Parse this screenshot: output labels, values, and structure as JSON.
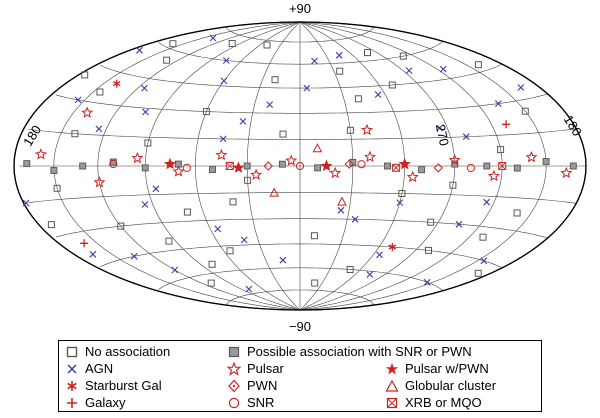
{
  "chart_data": {
    "type": "scatter",
    "projection": "Hammer-Aitoff all-sky map in Galactic coordinates (l decreasing to the right)",
    "labels": {
      "top": "+90",
      "bottom": "−90",
      "left": "180",
      "right": "180",
      "center_right": "270"
    },
    "grid": true,
    "legend_position": "bottom",
    "series": [
      {
        "name": "No association",
        "marker": "square",
        "color": "#5a5a4a",
        "note": "many points over the whole sky",
        "points": [
          [
            175,
            40
          ],
          [
            160,
            62
          ],
          [
            140,
            15
          ],
          [
            120,
            -30
          ],
          [
            100,
            70
          ],
          [
            80,
            -55
          ],
          [
            60,
            30
          ],
          [
            40,
            -20
          ],
          [
            20,
            50
          ],
          [
            -10,
            -40
          ],
          [
            -30,
            20
          ],
          [
            -50,
            -60
          ],
          [
            -70,
            45
          ],
          [
            -90,
            -10
          ],
          [
            -110,
            60
          ],
          [
            -130,
            -35
          ],
          [
            -150,
            25
          ],
          [
            -170,
            -50
          ],
          [
            150,
            -10
          ],
          [
            130,
            55
          ],
          [
            110,
            -65
          ],
          [
            90,
            12
          ],
          [
            70,
            -25
          ],
          [
            50,
            72
          ],
          [
            30,
            -8
          ],
          [
            10,
            18
          ],
          [
            -20,
            -70
          ],
          [
            -40,
            38
          ],
          [
            -60,
            -15
          ],
          [
            -80,
            65
          ],
          [
            -100,
            -45
          ],
          [
            -120,
            8
          ],
          [
            -140,
            -22
          ],
          [
            -160,
            48
          ],
          [
            170,
            -25
          ],
          [
            145,
            35
          ],
          [
            95,
            -40
          ],
          [
            55,
            -48
          ],
          [
            -35,
            55
          ],
          [
            -85,
            -30
          ]
        ]
      },
      {
        "name": "Possible association with SNR or PWN",
        "marker": "square-filled",
        "color": "#6a6a6a",
        "note": "along the Galactic plane",
        "points": [
          [
            170,
            1
          ],
          [
            150,
            -2
          ],
          [
            130,
            0
          ],
          [
            110,
            2
          ],
          [
            90,
            -1
          ],
          [
            70,
            1
          ],
          [
            50,
            -2
          ],
          [
            30,
            0
          ],
          [
            10,
            1
          ],
          [
            -10,
            -1
          ],
          [
            -30,
            2
          ],
          [
            -50,
            0
          ],
          [
            -70,
            -2
          ],
          [
            -90,
            1
          ],
          [
            -110,
            0
          ],
          [
            -130,
            -1
          ],
          [
            -150,
            2
          ],
          [
            -170,
            0
          ]
        ]
      },
      {
        "name": "AGN",
        "marker": "x",
        "color": "#3a3ab8",
        "note": "many points at high latitude",
        "points": [
          [
            172,
            55
          ],
          [
            155,
            30
          ],
          [
            135,
            -45
          ],
          [
            115,
            40
          ],
          [
            95,
            -20
          ],
          [
            75,
            60
          ],
          [
            55,
            -35
          ],
          [
            35,
            25
          ],
          [
            15,
            -55
          ],
          [
            -5,
            45
          ],
          [
            -25,
            -25
          ],
          [
            -45,
            65
          ],
          [
            -65,
            -50
          ],
          [
            -85,
            20
          ],
          [
            -105,
            -30
          ],
          [
            -125,
            50
          ],
          [
            -145,
            -60
          ],
          [
            -165,
            35
          ],
          [
            165,
            -40
          ],
          [
            140,
            70
          ],
          [
            120,
            -55
          ],
          [
            100,
            28
          ],
          [
            80,
            -72
          ],
          [
            60,
            48
          ],
          [
            40,
            -42
          ],
          [
            20,
            35
          ],
          [
            -15,
            62
          ],
          [
            -35,
            -30
          ],
          [
            -55,
            40
          ],
          [
            -75,
            -62
          ],
          [
            -95,
            52
          ],
          [
            -115,
            -18
          ],
          [
            -135,
            30
          ],
          [
            -155,
            -45
          ],
          [
            178,
            -15
          ],
          [
            125,
            18
          ],
          [
            85,
            -12
          ],
          [
            45,
            15
          ],
          [
            -60,
            -20
          ],
          [
            -100,
            15
          ]
        ]
      },
      {
        "name": "Pulsar",
        "marker": "star-open",
        "color": "#cc2222",
        "note": "concentrated near the plane",
        "points": [
          [
            160,
            5
          ],
          [
            120,
            -8
          ],
          [
            95,
            4
          ],
          [
            70,
            -3
          ],
          [
            45,
            6
          ],
          [
            25,
            -5
          ],
          [
            5,
            3
          ],
          [
            -20,
            -4
          ],
          [
            -40,
            5
          ],
          [
            -65,
            -6
          ],
          [
            -90,
            3
          ],
          [
            -115,
            -5
          ],
          [
            -140,
            4
          ],
          [
            -165,
            -3
          ],
          [
            140,
            25
          ],
          [
            -40,
            20
          ]
        ]
      },
      {
        "name": "Pulsar w/PWN",
        "marker": "star-filled",
        "color": "#cc2222",
        "note": "on the plane",
        "points": [
          [
            75,
            1
          ],
          [
            35,
            -1
          ],
          [
            -15,
            0
          ],
          [
            -60,
            1
          ]
        ]
      },
      {
        "name": "Starburst Gal",
        "marker": "asterisk",
        "color": "#cc2222",
        "note": "two points at high latitude",
        "points": [
          [
            140,
            40
          ],
          [
            -70,
            -45
          ]
        ]
      },
      {
        "name": "PWN",
        "marker": "diamond-open",
        "color": "#cc2222",
        "note": "on the plane",
        "points": [
          [
            18,
            0
          ],
          [
            -28,
            1
          ],
          [
            -80,
            -1
          ]
        ]
      },
      {
        "name": "Globular cluster",
        "marker": "triangle-open",
        "color": "#cc2222",
        "note": "near the centre",
        "points": [
          [
            15,
            -15
          ],
          [
            -10,
            10
          ],
          [
            -25,
            -20
          ]
        ]
      },
      {
        "name": "Galaxy",
        "marker": "plus",
        "color": "#cc2222",
        "note": "two points",
        "points": [
          [
            160,
            -35
          ],
          [
            -130,
            20
          ]
        ]
      },
      {
        "name": "SNR",
        "marker": "circle-open",
        "color": "#cc2222",
        "note": "on the plane",
        "points": [
          [
            110,
            1
          ],
          [
            65,
            -1
          ],
          [
            0,
            0
          ],
          [
            -35,
            1
          ],
          [
            -100,
            -1
          ]
        ]
      },
      {
        "name": "XRB or MQO",
        "marker": "square-x",
        "color": "#cc2222",
        "note": "on the plane",
        "points": [
          [
            40,
            0
          ],
          [
            -55,
            -1
          ],
          [
            -120,
            0
          ]
        ]
      }
    ]
  },
  "legend": {
    "items": [
      {
        "label": "No association",
        "symbol": "square-open",
        "color": "#5a5a4a"
      },
      {
        "label": "Possible association with SNR or PWN",
        "symbol": "square-filled",
        "color": "#6a6a6a"
      },
      {
        "label": "Pulsar w/PWN",
        "symbol": "star-filled",
        "color": "#cc2222"
      },
      {
        "label": "AGN",
        "symbol": "x",
        "color": "#3a3ab8"
      },
      {
        "label": "Pulsar",
        "symbol": "star-open",
        "color": "#cc2222"
      },
      {
        "label": "Starburst Gal",
        "symbol": "asterisk",
        "color": "#cc2222"
      },
      {
        "label": "PWN",
        "symbol": "diamond-open",
        "color": "#cc2222"
      },
      {
        "label": "Globular cluster",
        "symbol": "triangle-open",
        "color": "#cc2222"
      },
      {
        "label": "Galaxy",
        "symbol": "plus",
        "color": "#cc2222"
      },
      {
        "label": "SNR",
        "symbol": "circle-open",
        "color": "#cc2222"
      },
      {
        "label": "XRB or MQO",
        "symbol": "square-x",
        "color": "#cc2222"
      }
    ]
  }
}
